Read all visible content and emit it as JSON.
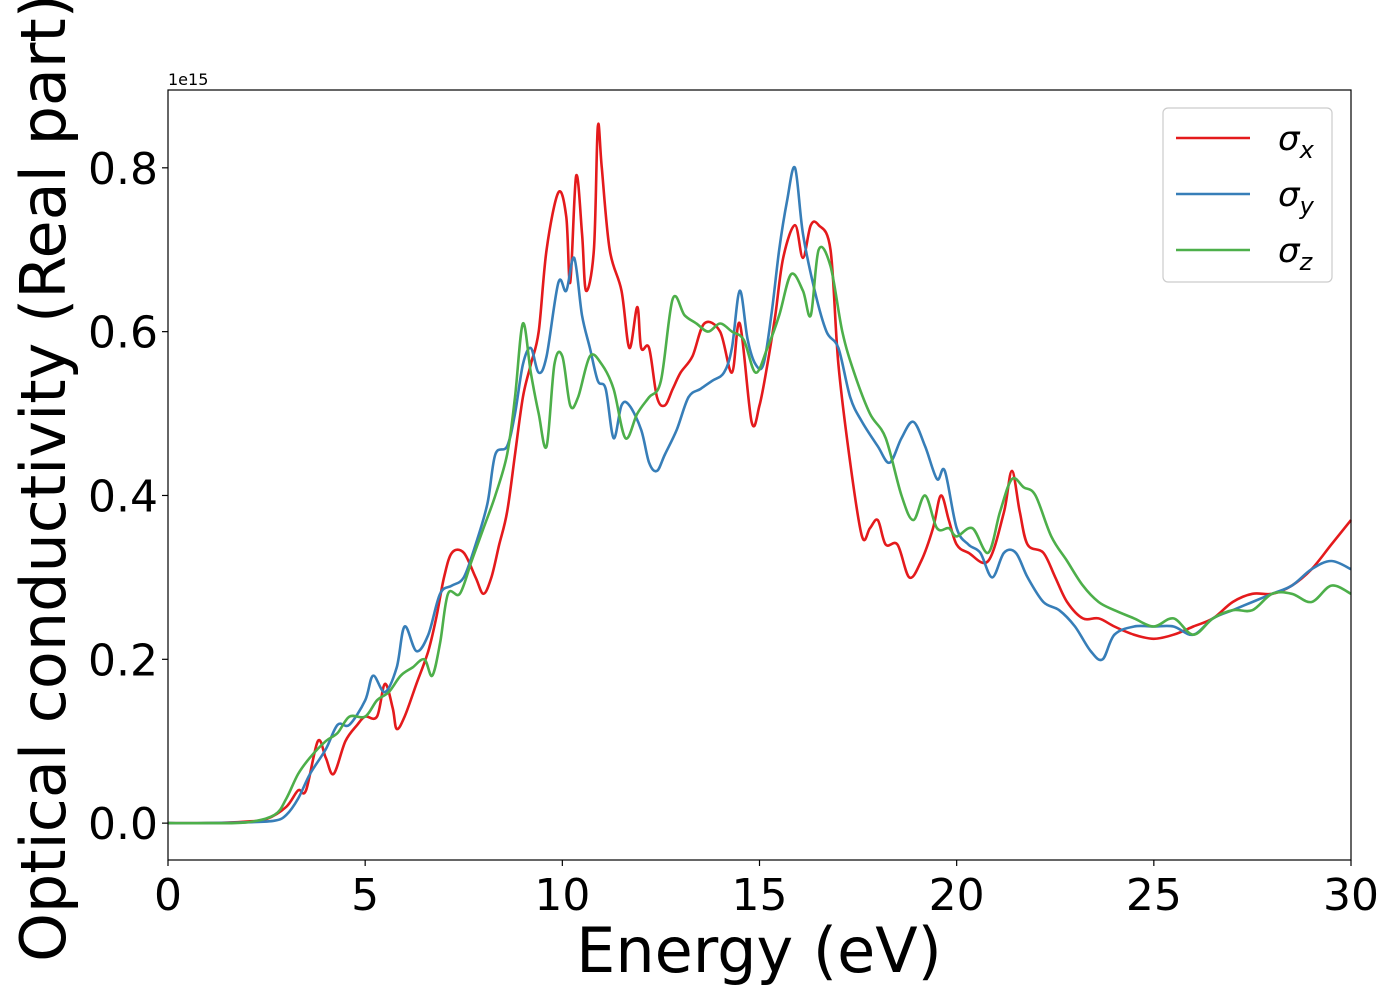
{
  "chart_data": {
    "type": "line",
    "xlabel": "Energy (eV)",
    "ylabel": "Optical conductivity (Real part)",
    "offset_text": "1e15",
    "xlim": [
      0,
      30
    ],
    "ylim": [
      -0.045,
      0.895
    ],
    "x_ticks": [
      0,
      5,
      10,
      15,
      20,
      25,
      30
    ],
    "x_tick_labels": [
      "0",
      "5",
      "10",
      "15",
      "20",
      "25",
      "30"
    ],
    "y_ticks": [
      0.0,
      0.2,
      0.4,
      0.6,
      0.8
    ],
    "y_tick_labels": [
      "0.0",
      "0.2",
      "0.4",
      "0.6",
      "0.8"
    ],
    "grid": false,
    "legend_position": "top-right",
    "series": [
      {
        "name": "σx",
        "label_main": "σ",
        "label_sub": "x",
        "color": "#e41a1c",
        "points": [
          [
            0,
            0
          ],
          [
            1,
            0
          ],
          [
            2,
            0.002
          ],
          [
            2.5,
            0.005
          ],
          [
            3,
            0.02
          ],
          [
            3.3,
            0.04
          ],
          [
            3.5,
            0.04
          ],
          [
            3.8,
            0.1
          ],
          [
            4,
            0.08
          ],
          [
            4.2,
            0.06
          ],
          [
            4.5,
            0.1
          ],
          [
            4.8,
            0.12
          ],
          [
            5,
            0.13
          ],
          [
            5.3,
            0.13
          ],
          [
            5.5,
            0.17
          ],
          [
            5.7,
            0.14
          ],
          [
            5.8,
            0.115
          ],
          [
            6,
            0.13
          ],
          [
            6.3,
            0.17
          ],
          [
            6.6,
            0.21
          ],
          [
            6.8,
            0.25
          ],
          [
            7,
            0.3
          ],
          [
            7.2,
            0.33
          ],
          [
            7.5,
            0.33
          ],
          [
            7.8,
            0.3
          ],
          [
            8,
            0.28
          ],
          [
            8.2,
            0.3
          ],
          [
            8.4,
            0.34
          ],
          [
            8.6,
            0.38
          ],
          [
            8.8,
            0.45
          ],
          [
            9,
            0.52
          ],
          [
            9.2,
            0.56
          ],
          [
            9.4,
            0.6
          ],
          [
            9.6,
            0.7
          ],
          [
            9.9,
            0.77
          ],
          [
            10.1,
            0.74
          ],
          [
            10.2,
            0.66
          ],
          [
            10.35,
            0.79
          ],
          [
            10.5,
            0.72
          ],
          [
            10.6,
            0.65
          ],
          [
            10.8,
            0.7
          ],
          [
            10.9,
            0.85
          ],
          [
            11,
            0.8
          ],
          [
            11.2,
            0.7
          ],
          [
            11.5,
            0.65
          ],
          [
            11.7,
            0.58
          ],
          [
            11.9,
            0.63
          ],
          [
            12,
            0.58
          ],
          [
            12.2,
            0.58
          ],
          [
            12.4,
            0.52
          ],
          [
            12.6,
            0.51
          ],
          [
            12.8,
            0.53
          ],
          [
            13,
            0.55
          ],
          [
            13.3,
            0.57
          ],
          [
            13.6,
            0.61
          ],
          [
            14,
            0.6
          ],
          [
            14.3,
            0.55
          ],
          [
            14.5,
            0.61
          ],
          [
            14.8,
            0.49
          ],
          [
            15,
            0.51
          ],
          [
            15.2,
            0.56
          ],
          [
            15.4,
            0.62
          ],
          [
            15.6,
            0.69
          ],
          [
            15.9,
            0.73
          ],
          [
            16.1,
            0.69
          ],
          [
            16.3,
            0.73
          ],
          [
            16.5,
            0.73
          ],
          [
            16.8,
            0.7
          ],
          [
            17,
            0.56
          ],
          [
            17.3,
            0.44
          ],
          [
            17.6,
            0.35
          ],
          [
            17.8,
            0.36
          ],
          [
            18,
            0.37
          ],
          [
            18.2,
            0.34
          ],
          [
            18.5,
            0.34
          ],
          [
            18.8,
            0.3
          ],
          [
            19.1,
            0.32
          ],
          [
            19.4,
            0.36
          ],
          [
            19.6,
            0.4
          ],
          [
            19.8,
            0.37
          ],
          [
            20,
            0.34
          ],
          [
            20.3,
            0.33
          ],
          [
            20.8,
            0.32
          ],
          [
            21.2,
            0.38
          ],
          [
            21.4,
            0.43
          ],
          [
            21.6,
            0.38
          ],
          [
            21.8,
            0.34
          ],
          [
            22.2,
            0.33
          ],
          [
            22.5,
            0.3
          ],
          [
            22.8,
            0.27
          ],
          [
            23.2,
            0.25
          ],
          [
            23.6,
            0.25
          ],
          [
            24,
            0.24
          ],
          [
            24.5,
            0.23
          ],
          [
            25,
            0.225
          ],
          [
            25.5,
            0.23
          ],
          [
            26,
            0.24
          ],
          [
            26.5,
            0.25
          ],
          [
            27,
            0.27
          ],
          [
            27.5,
            0.28
          ],
          [
            28,
            0.28
          ],
          [
            28.5,
            0.29
          ],
          [
            29,
            0.31
          ],
          [
            29.5,
            0.34
          ],
          [
            30,
            0.37
          ]
        ]
      },
      {
        "name": "σy",
        "label_main": "σ",
        "label_sub": "y",
        "color": "#377eb8",
        "points": [
          [
            0,
            0
          ],
          [
            1,
            0
          ],
          [
            2,
            0.001
          ],
          [
            2.7,
            0.003
          ],
          [
            3,
            0.01
          ],
          [
            3.3,
            0.03
          ],
          [
            3.6,
            0.06
          ],
          [
            4,
            0.09
          ],
          [
            4.3,
            0.12
          ],
          [
            4.6,
            0.12
          ],
          [
            5,
            0.15
          ],
          [
            5.2,
            0.18
          ],
          [
            5.5,
            0.16
          ],
          [
            5.8,
            0.19
          ],
          [
            6,
            0.24
          ],
          [
            6.3,
            0.21
          ],
          [
            6.6,
            0.23
          ],
          [
            6.9,
            0.28
          ],
          [
            7.2,
            0.29
          ],
          [
            7.5,
            0.3
          ],
          [
            7.8,
            0.34
          ],
          [
            8.1,
            0.39
          ],
          [
            8.3,
            0.45
          ],
          [
            8.6,
            0.46
          ],
          [
            8.8,
            0.5
          ],
          [
            9,
            0.56
          ],
          [
            9.2,
            0.58
          ],
          [
            9.4,
            0.55
          ],
          [
            9.6,
            0.57
          ],
          [
            9.9,
            0.66
          ],
          [
            10.1,
            0.65
          ],
          [
            10.3,
            0.69
          ],
          [
            10.5,
            0.62
          ],
          [
            10.7,
            0.58
          ],
          [
            10.9,
            0.54
          ],
          [
            11.1,
            0.53
          ],
          [
            11.3,
            0.47
          ],
          [
            11.5,
            0.51
          ],
          [
            11.7,
            0.51
          ],
          [
            12,
            0.48
          ],
          [
            12.2,
            0.44
          ],
          [
            12.4,
            0.43
          ],
          [
            12.6,
            0.45
          ],
          [
            12.9,
            0.48
          ],
          [
            13.2,
            0.52
          ],
          [
            13.5,
            0.53
          ],
          [
            13.8,
            0.54
          ],
          [
            14.1,
            0.55
          ],
          [
            14.3,
            0.58
          ],
          [
            14.5,
            0.65
          ],
          [
            14.7,
            0.59
          ],
          [
            14.9,
            0.56
          ],
          [
            15.1,
            0.56
          ],
          [
            15.3,
            0.62
          ],
          [
            15.5,
            0.7
          ],
          [
            15.7,
            0.76
          ],
          [
            15.9,
            0.8
          ],
          [
            16.1,
            0.72
          ],
          [
            16.4,
            0.65
          ],
          [
            16.7,
            0.6
          ],
          [
            17,
            0.58
          ],
          [
            17.3,
            0.52
          ],
          [
            17.6,
            0.49
          ],
          [
            18,
            0.46
          ],
          [
            18.3,
            0.44
          ],
          [
            18.6,
            0.47
          ],
          [
            18.9,
            0.49
          ],
          [
            19.2,
            0.46
          ],
          [
            19.5,
            0.42
          ],
          [
            19.7,
            0.43
          ],
          [
            20,
            0.36
          ],
          [
            20.3,
            0.34
          ],
          [
            20.6,
            0.33
          ],
          [
            20.9,
            0.3
          ],
          [
            21.2,
            0.33
          ],
          [
            21.5,
            0.33
          ],
          [
            21.8,
            0.3
          ],
          [
            22.2,
            0.27
          ],
          [
            22.6,
            0.26
          ],
          [
            23,
            0.24
          ],
          [
            23.4,
            0.21
          ],
          [
            23.7,
            0.2
          ],
          [
            24,
            0.23
          ],
          [
            24.5,
            0.24
          ],
          [
            25,
            0.24
          ],
          [
            25.5,
            0.24
          ],
          [
            26,
            0.23
          ],
          [
            26.5,
            0.25
          ],
          [
            27,
            0.26
          ],
          [
            27.5,
            0.27
          ],
          [
            28,
            0.28
          ],
          [
            28.5,
            0.29
          ],
          [
            29,
            0.31
          ],
          [
            29.5,
            0.32
          ],
          [
            30,
            0.31
          ]
        ]
      },
      {
        "name": "σz",
        "label_main": "σ",
        "label_sub": "z",
        "color": "#4daf4a",
        "points": [
          [
            0,
            0
          ],
          [
            1,
            0
          ],
          [
            2,
            0.001
          ],
          [
            2.7,
            0.01
          ],
          [
            3,
            0.03
          ],
          [
            3.3,
            0.06
          ],
          [
            3.6,
            0.08
          ],
          [
            4,
            0.1
          ],
          [
            4.3,
            0.11
          ],
          [
            4.6,
            0.13
          ],
          [
            5,
            0.13
          ],
          [
            5.3,
            0.15
          ],
          [
            5.6,
            0.16
          ],
          [
            5.9,
            0.18
          ],
          [
            6.2,
            0.19
          ],
          [
            6.5,
            0.2
          ],
          [
            6.7,
            0.18
          ],
          [
            6.9,
            0.22
          ],
          [
            7.1,
            0.28
          ],
          [
            7.4,
            0.28
          ],
          [
            7.7,
            0.32
          ],
          [
            8,
            0.36
          ],
          [
            8.3,
            0.4
          ],
          [
            8.6,
            0.45
          ],
          [
            8.8,
            0.52
          ],
          [
            9,
            0.61
          ],
          [
            9.2,
            0.55
          ],
          [
            9.4,
            0.5
          ],
          [
            9.6,
            0.46
          ],
          [
            9.8,
            0.56
          ],
          [
            10,
            0.57
          ],
          [
            10.2,
            0.51
          ],
          [
            10.4,
            0.52
          ],
          [
            10.7,
            0.57
          ],
          [
            11,
            0.56
          ],
          [
            11.3,
            0.53
          ],
          [
            11.6,
            0.47
          ],
          [
            11.9,
            0.5
          ],
          [
            12.2,
            0.52
          ],
          [
            12.5,
            0.54
          ],
          [
            12.8,
            0.64
          ],
          [
            13.1,
            0.62
          ],
          [
            13.4,
            0.61
          ],
          [
            13.7,
            0.6
          ],
          [
            14,
            0.61
          ],
          [
            14.3,
            0.6
          ],
          [
            14.6,
            0.59
          ],
          [
            14.9,
            0.55
          ],
          [
            15.2,
            0.58
          ],
          [
            15.5,
            0.62
          ],
          [
            15.8,
            0.67
          ],
          [
            16.1,
            0.65
          ],
          [
            16.3,
            0.62
          ],
          [
            16.5,
            0.7
          ],
          [
            16.8,
            0.68
          ],
          [
            17.1,
            0.6
          ],
          [
            17.4,
            0.55
          ],
          [
            17.8,
            0.5
          ],
          [
            18.2,
            0.47
          ],
          [
            18.6,
            0.4
          ],
          [
            18.9,
            0.37
          ],
          [
            19.2,
            0.4
          ],
          [
            19.5,
            0.36
          ],
          [
            19.8,
            0.36
          ],
          [
            20,
            0.35
          ],
          [
            20.4,
            0.36
          ],
          [
            20.8,
            0.33
          ],
          [
            21.1,
            0.38
          ],
          [
            21.4,
            0.42
          ],
          [
            21.7,
            0.41
          ],
          [
            22,
            0.4
          ],
          [
            22.4,
            0.35
          ],
          [
            22.8,
            0.32
          ],
          [
            23.2,
            0.29
          ],
          [
            23.6,
            0.27
          ],
          [
            24,
            0.26
          ],
          [
            24.5,
            0.25
          ],
          [
            25,
            0.24
          ],
          [
            25.5,
            0.25
          ],
          [
            26,
            0.23
          ],
          [
            26.5,
            0.25
          ],
          [
            27,
            0.26
          ],
          [
            27.5,
            0.26
          ],
          [
            28,
            0.28
          ],
          [
            28.5,
            0.28
          ],
          [
            29,
            0.27
          ],
          [
            29.5,
            0.29
          ],
          [
            30,
            0.28
          ]
        ]
      }
    ]
  }
}
